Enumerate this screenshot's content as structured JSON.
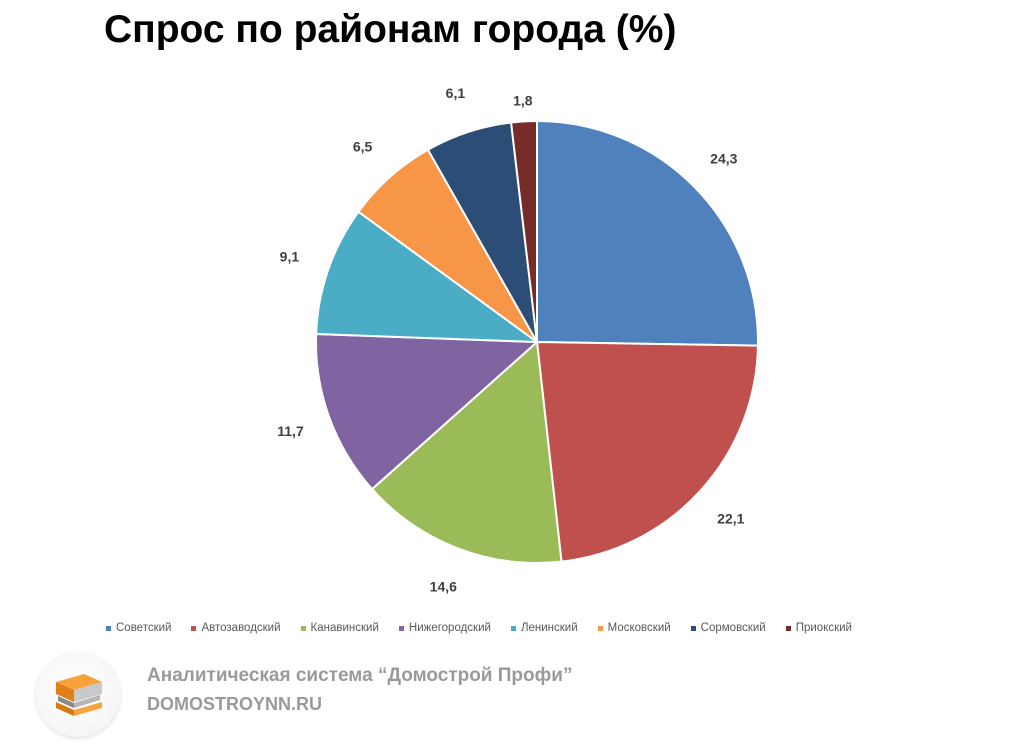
{
  "title": "Спрос по районам города (%)",
  "chart_data": {
    "type": "pie",
    "title": "Спрос по районам города (%)",
    "categories": [
      "Советский",
      "Автозаводский",
      "Канавинский",
      "Нижегородский",
      "Ленинский",
      "Московский",
      "Сормовский",
      "Приокский"
    ],
    "values": [
      24.3,
      22.1,
      14.6,
      11.7,
      9.1,
      6.5,
      6.1,
      1.8
    ],
    "data_labels": [
      "24,3",
      "22,1",
      "14,6",
      "11,7",
      "9,1",
      "6,5",
      "6,1",
      "1,8"
    ],
    "colors": [
      "#4f81bd",
      "#c0504d",
      "#9bbb59",
      "#8064a2",
      "#4bacc6",
      "#f79646",
      "#2c4d75",
      "#772c2a"
    ],
    "start": "12 o'clock",
    "direction": "clockwise",
    "legend_position": "bottom"
  },
  "footer": {
    "system_name": "Аналитическая система “Домострой Профи”",
    "site": "DOMOSTROYNN.RU",
    "logo_icon": "book-stack-icon"
  }
}
